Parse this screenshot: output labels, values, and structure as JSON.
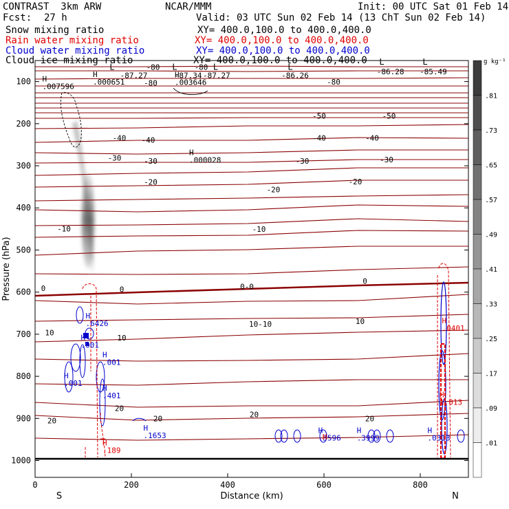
{
  "header": {
    "model": "CONTRAST  3km ARW",
    "org": "NCAR/MMM",
    "init": "Init: 00 UTC Sat 01 Feb 14",
    "fcst_label": "Fcst:",
    "fcst_value": "27 h",
    "valid": "Valid: 03 UTC Sun 02 Feb 14 (13 ChT Sun 02 Feb 14)"
  },
  "fields": [
    {
      "name": "Snow mixing ratio",
      "color": "#000000",
      "xy": "XY= 400.0,100.0 to 400.0,400.0"
    },
    {
      "name": "Rain water mixing ratio",
      "color": "#e00000",
      "xy": "XY= 400.0,100.0 to 400.0,400.0"
    },
    {
      "name": "Cloud water mixing ratio",
      "color": "#0000cc",
      "xy": "XY= 400.0,100.0 to 400.0,400.0"
    },
    {
      "name": "Cloud ice mixing ratio",
      "color": "#000000",
      "xy": "XY= 400.0,100.0 to 400.0,400.0"
    }
  ],
  "chart_data": {
    "type": "cross-section",
    "xlabel": "Distance (km)",
    "ylabel": "Pressure (hPa)",
    "xlim": [
      0,
      900
    ],
    "ylim": [
      1040,
      50
    ],
    "xticks": [
      0,
      200,
      400,
      600,
      800
    ],
    "yticks": [
      100,
      200,
      300,
      400,
      500,
      600,
      700,
      800,
      900,
      1000
    ],
    "end_labels": {
      "left": "S",
      "right": "N"
    },
    "colorbar": {
      "unit": "g kg⁻¹",
      "labels": [
        ".01",
        ".09",
        ".17",
        ".25",
        ".33",
        ".41",
        ".49",
        ".57",
        ".65",
        ".73",
        ".81"
      ]
    },
    "temperature_labels": [
      {
        "x": 245,
        "p": 72,
        "text": "-80"
      },
      {
        "x": 240,
        "p": 110,
        "text": "-80"
      },
      {
        "x": 345,
        "p": 72,
        "text": "-80"
      },
      {
        "x": 620,
        "p": 107,
        "text": "-80"
      },
      {
        "x": 590,
        "p": 188,
        "text": "-50"
      },
      {
        "x": 735,
        "p": 188,
        "text": "-50"
      },
      {
        "x": 175,
        "p": 240,
        "text": "-40"
      },
      {
        "x": 235,
        "p": 245,
        "text": "-40"
      },
      {
        "x": 590,
        "p": 240,
        "text": "-40"
      },
      {
        "x": 700,
        "p": 240,
        "text": "-40"
      },
      {
        "x": 165,
        "p": 288,
        "text": "-30"
      },
      {
        "x": 240,
        "p": 295,
        "text": "-30"
      },
      {
        "x": 555,
        "p": 295,
        "text": "-30"
      },
      {
        "x": 730,
        "p": 292,
        "text": "-30"
      },
      {
        "x": 240,
        "p": 345,
        "text": "-20"
      },
      {
        "x": 495,
        "p": 363,
        "text": "-20"
      },
      {
        "x": 665,
        "p": 344,
        "text": "-20"
      },
      {
        "x": 60,
        "p": 456,
        "text": "-10"
      },
      {
        "x": 465,
        "p": 457,
        "text": "-10"
      },
      {
        "x": 17,
        "p": 597,
        "text": "0"
      },
      {
        "x": 180,
        "p": 600,
        "text": "0"
      },
      {
        "x": 440,
        "p": 593,
        "text": "0-0"
      },
      {
        "x": 685,
        "p": 580,
        "text": "0"
      },
      {
        "x": 30,
        "p": 703,
        "text": "10"
      },
      {
        "x": 180,
        "p": 715,
        "text": "10"
      },
      {
        "x": 468,
        "p": 682,
        "text": "10-10"
      },
      {
        "x": 675,
        "p": 676,
        "text": "10"
      },
      {
        "x": 35,
        "p": 912,
        "text": "20"
      },
      {
        "x": 175,
        "p": 882,
        "text": "20"
      },
      {
        "x": 255,
        "p": 907,
        "text": "20"
      },
      {
        "x": 455,
        "p": 897,
        "text": "20"
      },
      {
        "x": 695,
        "p": 907,
        "text": "20"
      }
    ],
    "isotherm_labels": [
      {
        "x": 205,
        "p": 92,
        "text": "-87.27"
      },
      {
        "x": 318,
        "p": 92,
        "text": "-87.34"
      },
      {
        "x": 377,
        "p": 92,
        "text": "-87.27"
      },
      {
        "x": 540,
        "p": 92,
        "text": "-86.26"
      },
      {
        "x": 738,
        "p": 83,
        "text": "-86.28"
      },
      {
        "x": 827,
        "p": 83,
        "text": "-85.49"
      }
    ],
    "lows": [
      {
        "x": 160,
        "p": 72
      },
      {
        "x": 290,
        "p": 72
      },
      {
        "x": 375,
        "p": 72
      },
      {
        "x": 530,
        "p": 72
      },
      {
        "x": 720,
        "p": 60
      },
      {
        "x": 810,
        "p": 60
      }
    ],
    "highs_black": [
      {
        "x": 15,
        "p": 118,
        "value": ".007596"
      },
      {
        "x": 120,
        "p": 107,
        "value": ".000651"
      },
      {
        "x": 290,
        "p": 108,
        "value": ".003646"
      },
      {
        "x": 320,
        "p": 293,
        "value": ".000028"
      }
    ],
    "highs_blue": [
      {
        "x": 105,
        "p": 681,
        "value": ".6426"
      },
      {
        "x": 95,
        "p": 732,
        "value": ".001"
      },
      {
        "x": 140,
        "p": 773,
        "value": ".001"
      },
      {
        "x": 60,
        "p": 823,
        "value": ".001"
      },
      {
        "x": 140,
        "p": 852,
        "value": ".401"
      },
      {
        "x": 225,
        "p": 947,
        "value": ".1653"
      },
      {
        "x": 588,
        "p": 953,
        "value": ".3596"
      },
      {
        "x": 668,
        "p": 953,
        "value": ".3999"
      },
      {
        "x": 815,
        "p": 953,
        "value": ".0313"
      }
    ],
    "highs_red": [
      {
        "x": 845,
        "p": 692,
        "value": ".0401"
      },
      {
        "x": 840,
        "p": 868,
        "value": "1.013"
      },
      {
        "x": 140,
        "p": 982,
        "value": ".189"
      }
    ],
    "red_bare": [
      {
        "x": 597,
        "p": 950,
        "text": "H"
      }
    ]
  }
}
